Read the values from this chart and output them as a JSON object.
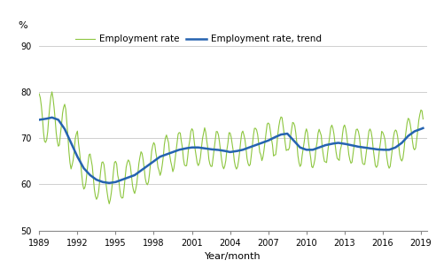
{
  "title": "",
  "ylabel": "%",
  "xlabel": "Year/month",
  "ylim": [
    50,
    93
  ],
  "yticks": [
    50,
    60,
    70,
    80,
    90
  ],
  "xlim_start": 1989.0,
  "xlim_end": 2019.5,
  "xticks": [
    1989,
    1992,
    1995,
    1998,
    2001,
    2004,
    2007,
    2010,
    2013,
    2016,
    2019
  ],
  "line_color_employment": "#8dc63f",
  "line_color_trend": "#2563b0",
  "legend_labels": [
    "Employment rate",
    "Employment rate, trend"
  ],
  "background_color": "#ffffff",
  "grid_color": "#c8c8c8",
  "keypoints_year": [
    1989.0,
    1989.5,
    1990.0,
    1990.5,
    1991.0,
    1991.5,
    1992.0,
    1992.5,
    1993.0,
    1993.5,
    1994.0,
    1994.5,
    1995.0,
    1995.5,
    1996.0,
    1996.5,
    1997.0,
    1997.5,
    1998.0,
    1998.5,
    1999.0,
    1999.5,
    2000.0,
    2000.5,
    2001.0,
    2001.5,
    2002.0,
    2002.5,
    2003.0,
    2003.5,
    2004.0,
    2004.5,
    2005.0,
    2005.5,
    2006.0,
    2006.5,
    2007.0,
    2007.5,
    2008.0,
    2008.5,
    2009.0,
    2009.5,
    2010.0,
    2010.5,
    2011.0,
    2011.5,
    2012.0,
    2012.5,
    2013.0,
    2013.5,
    2014.0,
    2014.5,
    2015.0,
    2015.5,
    2016.0,
    2016.5,
    2017.0,
    2017.5,
    2018.0,
    2018.5,
    2019.0,
    2019.17
  ],
  "keypoints_val": [
    74.0,
    74.2,
    74.5,
    74.0,
    72.0,
    69.0,
    66.0,
    63.5,
    62.0,
    61.0,
    60.5,
    60.3,
    60.5,
    61.0,
    61.5,
    62.0,
    63.0,
    64.0,
    65.0,
    66.0,
    66.5,
    67.0,
    67.5,
    67.8,
    68.0,
    68.0,
    67.8,
    67.6,
    67.5,
    67.3,
    67.0,
    67.2,
    67.5,
    68.0,
    68.5,
    69.0,
    69.5,
    70.2,
    70.8,
    71.0,
    69.5,
    68.0,
    67.5,
    67.5,
    68.0,
    68.5,
    68.8,
    69.0,
    68.8,
    68.5,
    68.2,
    68.0,
    67.8,
    67.6,
    67.5,
    67.5,
    68.0,
    69.0,
    70.5,
    71.5,
    72.0,
    72.2
  ]
}
